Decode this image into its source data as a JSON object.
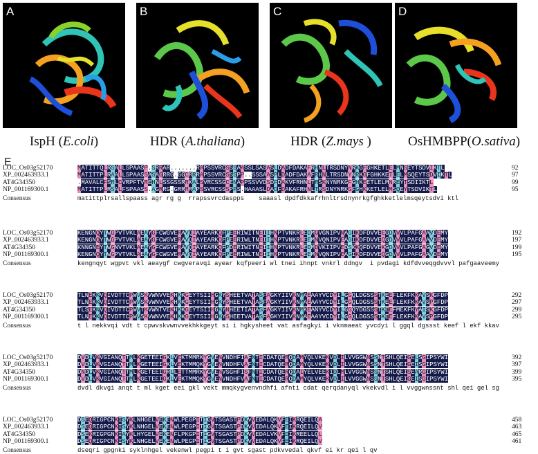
{
  "panels": [
    {
      "letter": "A",
      "caption_main": "IspH (",
      "caption_italic": "E.coli",
      "caption_end": ")"
    },
    {
      "letter": "B",
      "caption_main": "HDR (",
      "caption_italic": "A.thaliana",
      "caption_end": ")"
    },
    {
      "letter": "C",
      "caption_main": "HDR (",
      "caption_italic": "Z.mays",
      "caption_end": " )"
    },
    {
      "letter": "D",
      "caption_main": "OsHMBPP(",
      "caption_italic": "O.sativa",
      "caption_end": ")"
    }
  ],
  "alignment": {
    "label": "E",
    "blocks": [
      {
        "rows": [
          {
            "name": "LOC_Os03g52170",
            "seq": "MATITTQLRSALLSPAASP.SRRAR.......RAPSSVRCSSSAASSLSASASLDADFDAKAFRHNLTRSDNYNRKGFGHKETLELMNSEYTSDVIKTL",
            "end": "92"
          },
          {
            "name": "XP_002463933.1",
            "seq": "MATITTPLRAALLSPAASSASAGRRG.GGCRRRAPSSVRCSSSPP..SSSAASPLDADFDAKAFRHNLTRSDNYNRKGFGHKKETLELMSQEYTSDVIKTL",
            "end": "97"
          },
          {
            "name": "AT4G34350",
            "seq": ".MAVALCFSRLCVRPFTVREHNLSSGSSRRKALSVRCSSGCENAPPSSVVDSDFDAKVFRHNLTRSKNYNRKGFGHKEETLELMNREYTSDIIKTL",
            "end": "99"
          },
          {
            "name": "NP_001169300.1",
            "seq": "MATITTPLRSALFSPAASS.AGRRG.GRRRRAPSSVRCSSSPPS.HAAASLDADFDAKAFRHNLTRSDNYNRKGFGHKKETLELMSQEYTSDVIKTL",
            "end": "95"
          },
          {
            "name": "Consensus",
            "seq": "matittplrsallspaass agr rg g  rrapssvrcdaspps    saaasl dpdfdkkafrhnltrsdnynrkgfghkketlelmsqeytsdvi ktl",
            "end": ""
          }
        ]
      },
      {
        "rows": [
          {
            "name": "LOC_Os03g52170",
            "seq": "KENGNQYTWGPVTVKLAEAYGFCWGVERAVQIAYEARKQFPEERIWITNEIIHNPTVNKRLEDMGVGNIPVNAGIKDFDVVEEGDVVVLPAFGAAVDEMY",
            "end": "192"
          },
          {
            "name": "XP_002463933.1",
            "seq": "KENGNQYTWGPVTVKLAEAYGFCWGVERAVQIAYEARKQFPEERIWLTNEIIHNPTVNKRLEEMNVQNIPVEAGIKDFDVVEQGDVVVLPAFGAAVDEMY",
            "end": "197"
          },
          {
            "name": "AT4G34350",
            "seq": "KNNGNEYTWGNVTVKLAEAYGFCWGVERAVQIAYEARKQFPDERIWITNEIIHNPTVNKRLEDMDVKIIPVEDSKKQFDVVEKGDVVVLPAFGAGVDEMY",
            "end": "199"
          },
          {
            "name": "NP_001169300.1",
            "seq": "KENGNQYTWGPVTVKLAEAYGFCWGVERAVQIAYEARKQFPEERIWLTNEIIHNPTVNKRLEEMNVQNIPVEAGIKDFDVVEQGDVVVLPAFGAAVDEMY",
            "end": "195"
          },
          {
            "name": "Consensus",
            "seq": "kengnqyt wgpvt vkl aeaygf cwgveravqi ayear kqfpeeri wl tnei ihnpt vnkrl ddngv  i pvdagi kdfdvveqgdvvvl pafgaaveemy",
            "end": ""
          }
        ]
      },
      {
        "rows": [
          {
            "name": "LOC_Os03g52170",
            "seq": "TLNEKKVQIVDTTCPWVSKVWNVVEKHKKGEYTSIIHGKYSHEETVATASFAGKYIIVKNMAEAAYVCDYILGGQLDGSSSTKEEFLEKFKKAVSKGFDP",
            "end": "292"
          },
          {
            "name": "XP_002463933.1",
            "seq": "TLNEKKVQIVDTTCPWVSKVWNVVEKHKKGEYTSIIHGKYSHEETVATASFAGKYIIVKNMAEAAYVCDYILGGQLDGSSSTKEEFLEKFKKAVSPGFDP",
            "end": "297"
          },
          {
            "name": "AT4G34350",
            "seq": "TLSEKNVQIVDTTCPWVTKVWNTVEKHKKGEYTSIIHGKYNHEETIATASFAGKYIIVKNMKEANYVCDYILGGQYDGSSSTKEEFMEKFKYAISKGFDP",
            "end": "299"
          },
          {
            "name": "NP_001169300.1",
            "seq": "TLNEKKVQIVDTTCPWVSKVWNVVEKHKKGEYTSIIHGKYSHEETVATASFAGKYIIVKNMAEAAYVCDYILGGQLDGSSSTKEEFLEKFKKAVSPGFDP",
            "end": "295"
          },
          {
            "name": "Consensus",
            "seq": "t l nekkvqi vdt t cpwvskvwnvvekhkkgeyt si i hgkysheet vat asfagkyi i vknmaeat yvcdyi l ggql dgssst keef l ekf kkavspgf dp",
            "end": ""
          }
        ]
      },
      {
        "rows": [
          {
            "name": "LOC_Os03g52170",
            "seq": "DVDLVKVGIANQTTMLKGETEEIGKLVEKTMMRKYGVENVNDHFIAFNTICDATQERQDAMYQLVKEKVDLILVVGGWNSSNTSHLQEIGELSGIPSYWI",
            "end": "392"
          },
          {
            "name": "XP_002463933.1",
            "seq": "DVDLVKVGIANQTTMLKGETEEIGKLVEKTMMQKYGVENVNDHFVAFNTICDATQERQDAMYQLVKEKVDLILVVGGWNSSNTSHLQEIGEISGIPSYWI",
            "end": "397"
          },
          {
            "name": "AT4G34350",
            "seq": "DNDLVKVGIANQTTMLKGETEEIGRLLETTMMRKYGVENVSGHFISFNTICDATQERQDAIYELVEEKIDLMLVVGGWNSSNTSHLQEISEARGIPSYWI",
            "end": "399"
          },
          {
            "name": "NP_001169300.1",
            "seq": "DVDLVKVGIANQTTMLKGETEEIGKLVEKTMMQKYGVENVNDHFVAFNTICDATQERQDAMYQLVKEKVDLILVVGGWNSSNTSHLQEIGEISGIPSYWI",
            "end": "395"
          },
          {
            "name": "Consensus",
            "seq": "dvdl dkvgi anqt t ml kget eei gkl vekt mmqkygvenvndhfi afnti cdat qerqdanyql vkekvdl i l vvggwnssnt shl qei gel sgi psywi",
            "end": ""
          }
        ]
      },
      {
        "rows": [
          {
            "name": "LOC_Os03g52170",
            "seq": "DSEQRIGPCNKISYKLNHGELVEKENWLPEGPITIGVTSGASTPDKVVEDALQKVFEIKRQEILQA",
            "end": "458"
          },
          {
            "name": "XP_002463933.1",
            "seq": "DSEQRIGPCNKISYKLNHGELVEKENWLPEGPITIGVTSGASTPDKVVEDALQKVFEIKRQEILQV",
            "end": "463"
          },
          {
            "name": "AT4G34350",
            "seq": "DSEKRIGPGNKIAYKLHYGELVEKENFLPKGPITIGVTSGASTPDKVVEDALVKVFDIKREELLQL",
            "end": "465"
          },
          {
            "name": "NP_001169300.1",
            "seq": "DSEQRIGPCNKISYKLNHGELVEKENWLPEGPITIGVTSGASTPDKVVEDALQKVFEIKRQEILQV",
            "end": "461"
          },
          {
            "name": "Consensus",
            "seq": "dseqri gpgnki syklnhgel vekenwl pegpi t i gvt sgast pdkvvedal qkvf ei kr qei l qv",
            "end": ""
          }
        ]
      }
    ]
  }
}
